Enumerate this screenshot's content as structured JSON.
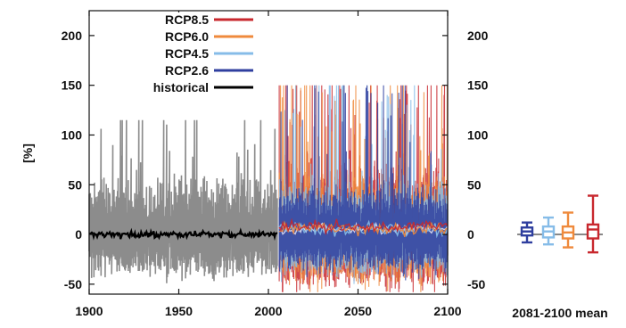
{
  "chart_data": [
    {
      "type": "line",
      "title": "",
      "xlabel": "",
      "ylabel": "[%]",
      "xlim": [
        1900,
        2100
      ],
      "ylim": [
        -60,
        225
      ],
      "x_ticks": [
        "1900",
        "1950",
        "2000",
        "2050",
        "2100"
      ],
      "y_ticks_left": [
        "-50",
        "0",
        "50",
        "100",
        "150",
        "200"
      ],
      "y_ticks_right": [
        "-50",
        "0",
        "50",
        "100",
        "150",
        "200"
      ],
      "legend_position": "top-left",
      "legend": [
        "RCP8.5",
        "RCP6.0",
        "RCP4.5",
        "RCP2.6",
        "historical"
      ],
      "colors": {
        "RCP8.5": "#c8282e",
        "RCP6.0": "#ef8a3c",
        "RCP4.5": "#86bce8",
        "RCP2.6": "#2f3f9f",
        "historical": "#000000",
        "historical_spread": "#8c8c8c"
      },
      "series": [
        {
          "name": "historical",
          "x_range": [
            1900,
            2005
          ],
          "mean": 0,
          "min_approx": -55,
          "max_approx": 115
        },
        {
          "name": "RCP2.6",
          "x_range": [
            2006,
            2100
          ],
          "mean": 5,
          "min_approx": -55,
          "max_approx": 150
        },
        {
          "name": "RCP4.5",
          "x_range": [
            2006,
            2100
          ],
          "mean": 5,
          "min_approx": -55,
          "max_approx": 150
        },
        {
          "name": "RCP6.0",
          "x_range": [
            2006,
            2100
          ],
          "mean": 6,
          "min_approx": -58,
          "max_approx": 150
        },
        {
          "name": "RCP8.5",
          "x_range": [
            2006,
            2100
          ],
          "mean": 8,
          "min_approx": -58,
          "max_approx": 150
        }
      ]
    },
    {
      "type": "box",
      "xlabel": "2081-2100 mean",
      "boxes": [
        {
          "name": "RCP2.6",
          "median": 3,
          "q1": -1,
          "q3": 7,
          "whisker_low": -8,
          "whisker_high": 12
        },
        {
          "name": "RCP4.5",
          "median": 3,
          "q1": -3,
          "q3": 8,
          "whisker_low": -10,
          "whisker_high": 17
        },
        {
          "name": "RCP6.0",
          "median": 2,
          "q1": -4,
          "q3": 8,
          "whisker_low": -13,
          "whisker_high": 22
        },
        {
          "name": "RCP8.5",
          "median": 5,
          "q1": -4,
          "q3": 10,
          "whisker_low": -18,
          "whisker_high": 39
        }
      ]
    }
  ]
}
